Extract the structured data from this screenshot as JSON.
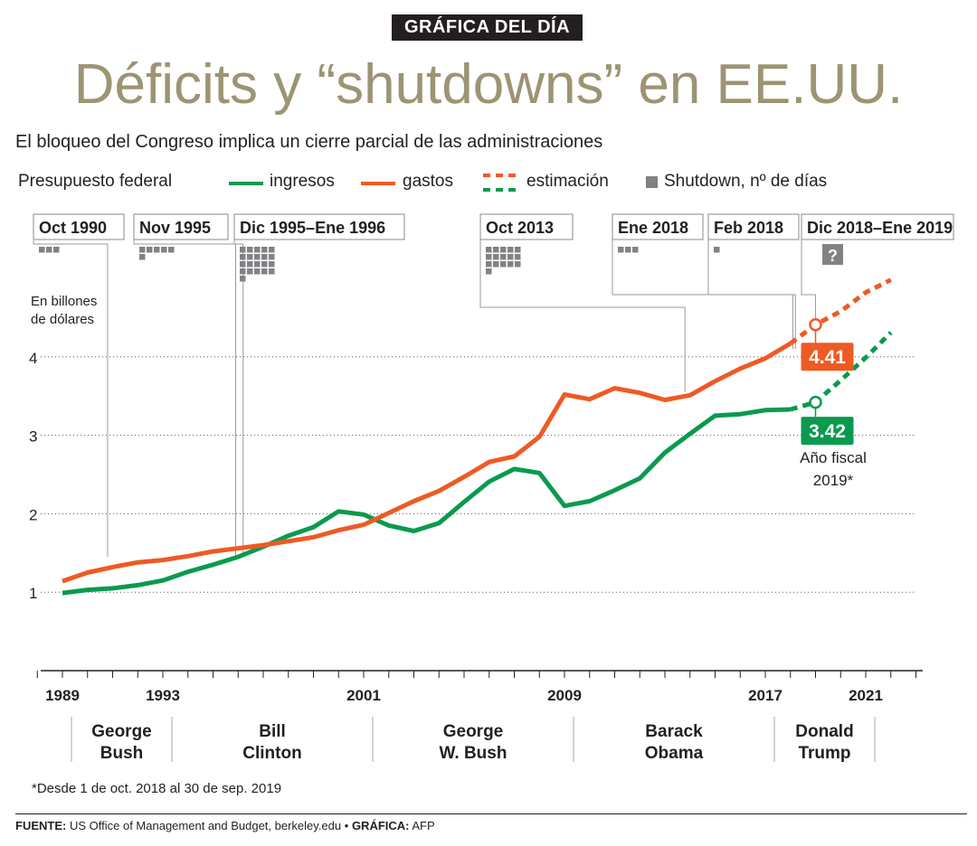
{
  "header": {
    "badge": "GRÁFICA DEL DÍA",
    "title": "Déficits y “shutdowns” en EE.UU.",
    "subtitle": "El bloqueo del Congreso implica un cierre parcial de las administraciones"
  },
  "legend": {
    "title": "Presupuesto federal",
    "ingresos": "ingresos",
    "gastos": "gastos",
    "estimacion": "estimación",
    "shutdown": "Shutdown, nº de días"
  },
  "colors": {
    "ingresos": "#0a9a4e",
    "gastos": "#ee5a24",
    "grid": "#555555",
    "shutdown": "#808285"
  },
  "chart_data": {
    "type": "line",
    "title": "Déficits y “shutdowns” en EE.UU.",
    "ylabel": "En billones de dólares",
    "xlim": [
      1988,
      2023
    ],
    "ylim": [
      0,
      5
    ],
    "yticks": [
      1,
      2,
      3,
      4
    ],
    "xtick_labels": [
      "1989",
      "1993",
      "2001",
      "2009",
      "2017",
      "2021"
    ],
    "grid": true,
    "legend_position": "top",
    "series": [
      {
        "name": "ingresos",
        "x": [
          1989,
          1990,
          1991,
          1992,
          1993,
          1994,
          1995,
          1996,
          1997,
          1998,
          1999,
          2000,
          2001,
          2002,
          2003,
          2004,
          2005,
          2006,
          2007,
          2008,
          2009,
          2010,
          2011,
          2012,
          2013,
          2014,
          2015,
          2016,
          2017,
          2018
        ],
        "values": [
          0.99,
          1.03,
          1.05,
          1.09,
          1.15,
          1.26,
          1.35,
          1.45,
          1.58,
          1.72,
          1.83,
          2.03,
          1.99,
          1.85,
          1.78,
          1.88,
          2.15,
          2.41,
          2.57,
          2.52,
          2.1,
          2.16,
          2.3,
          2.45,
          2.78,
          3.02,
          3.25,
          3.27,
          3.32,
          3.33
        ]
      },
      {
        "name": "gastos",
        "x": [
          1989,
          1990,
          1991,
          1992,
          1993,
          1994,
          1995,
          1996,
          1997,
          1998,
          1999,
          2000,
          2001,
          2002,
          2003,
          2004,
          2005,
          2006,
          2007,
          2008,
          2009,
          2010,
          2011,
          2012,
          2013,
          2014,
          2015,
          2016,
          2017,
          2018
        ],
        "values": [
          1.14,
          1.25,
          1.32,
          1.38,
          1.41,
          1.46,
          1.52,
          1.56,
          1.6,
          1.65,
          1.7,
          1.79,
          1.86,
          2.01,
          2.16,
          2.29,
          2.47,
          2.66,
          2.73,
          2.98,
          3.52,
          3.46,
          3.6,
          3.54,
          3.45,
          3.51,
          3.69,
          3.85,
          3.98,
          4.17
        ]
      },
      {
        "name": "ingresos (estimación)",
        "x": [
          2018,
          2019,
          2020,
          2021,
          2022
        ],
        "values": [
          3.33,
          3.42,
          3.7,
          3.99,
          4.31
        ],
        "estimated": true
      },
      {
        "name": "gastos (estimación)",
        "x": [
          2018,
          2019,
          2020,
          2021,
          2022
        ],
        "values": [
          4.17,
          4.41,
          4.58,
          4.82,
          4.98
        ],
        "estimated": true
      }
    ],
    "highlights": [
      {
        "series": "gastos",
        "x": 2019,
        "value": 4.41,
        "label": "4.41"
      },
      {
        "series": "ingresos",
        "x": 2019,
        "value": 3.42,
        "label": "3.42"
      }
    ],
    "fiscal_year_note": "Año fiscal 2019*",
    "shutdowns": [
      {
        "label": "Oct 1990",
        "x": 1990.8,
        "days": 3
      },
      {
        "label": "Nov 1995",
        "x": 1995.9,
        "days": 6
      },
      {
        "label": "Dic 1995–Ene 1996",
        "x": 1996.2,
        "days": 21
      },
      {
        "label": "Oct 2013",
        "x": 2013.8,
        "days": 16
      },
      {
        "label": "Ene 2018",
        "x": 2018.1,
        "days": 3
      },
      {
        "label": "Feb 2018",
        "x": 2018.2,
        "days": 1
      },
      {
        "label": "Dic 2018–Ene 2019",
        "x": 2019.0,
        "days": null,
        "unknown_mark": "?"
      }
    ],
    "presidents": [
      {
        "name": "George Bush",
        "from": 1989,
        "to": 1993
      },
      {
        "name": "Bill Clinton",
        "from": 1993,
        "to": 2001
      },
      {
        "name": "George W. Bush",
        "from": 2001,
        "to": 2009
      },
      {
        "name": "Barack Obama",
        "from": 2009,
        "to": 2017
      },
      {
        "name": "Donald Trump",
        "from": 2017,
        "to": 2021
      }
    ]
  },
  "footnote": "*Desde 1 de oct. 2018 al 30 de sep. 2019",
  "source": {
    "label": "FUENTE:",
    "text": "US Office of Management and Budget, berkeley.edu",
    "credit_label": "GRÁFICA:",
    "credit": "AFP"
  }
}
